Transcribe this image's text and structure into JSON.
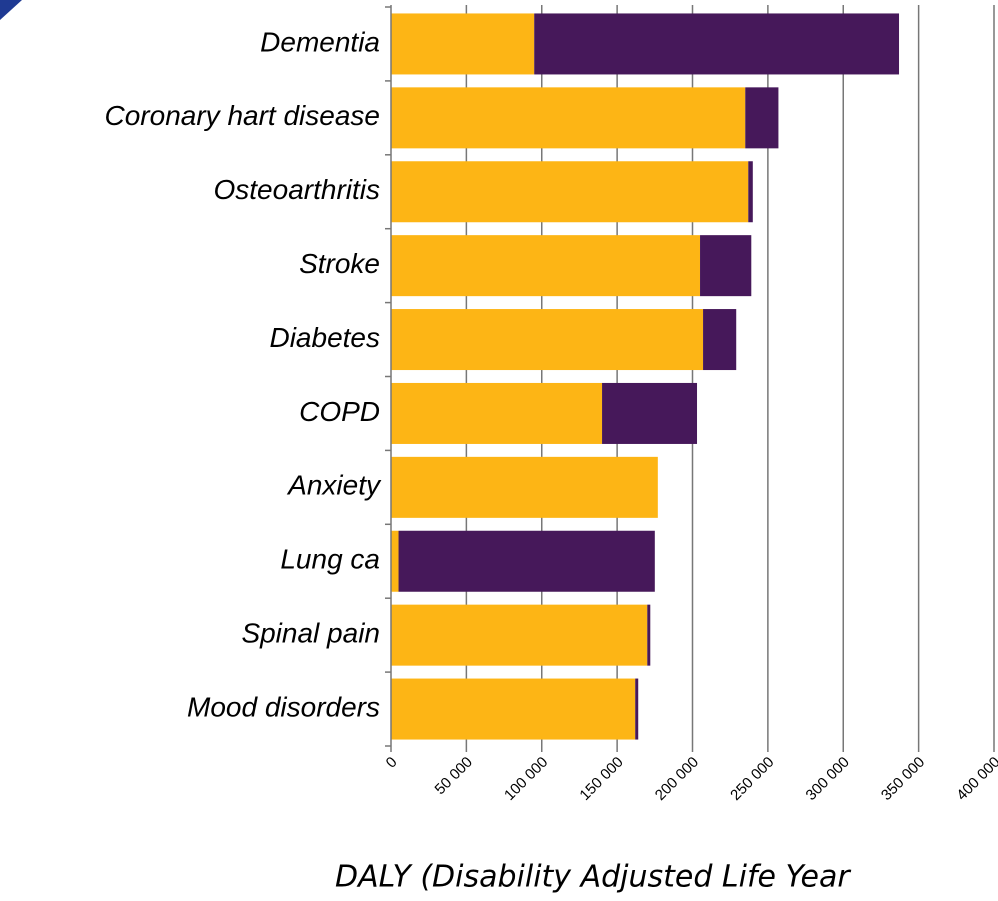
{
  "chart_data": {
    "type": "bar",
    "orientation": "horizontal",
    "stacked": true,
    "x_label": "DALY (Disability Adjusted Life Year",
    "categories": [
      "Dementia",
      "Coronary hart disease",
      "Osteoarthritis",
      "Stroke",
      "Diabetes",
      "COPD",
      "Anxiety",
      "Lung ca",
      "Spinal pain",
      "Mood disorders"
    ],
    "series": [
      {
        "color": "#fdb515",
        "values": [
          95000,
          235000,
          237000,
          205000,
          207000,
          140000,
          177000,
          5000,
          170000,
          162000
        ]
      },
      {
        "color": "#46185a",
        "values": [
          242000,
          22000,
          3000,
          34000,
          22000,
          63000,
          0,
          170000,
          2000,
          2000
        ]
      }
    ],
    "xlim": [
      0,
      400000
    ],
    "xticks": [
      0,
      {
        "value": 50000,
        "label": "50 000"
      },
      {
        "value": 100000,
        "label": "100 000"
      },
      {
        "value": 150000,
        "label": "150 000"
      },
      {
        "value": 200000,
        "label": "200 000"
      },
      {
        "value": 250000,
        "label": "250 000"
      },
      {
        "value": 300000,
        "label": "300 000"
      },
      {
        "value": 350000,
        "label": "350 000"
      },
      {
        "value": 400000,
        "label": "400 000"
      }
    ],
    "grid": true
  }
}
